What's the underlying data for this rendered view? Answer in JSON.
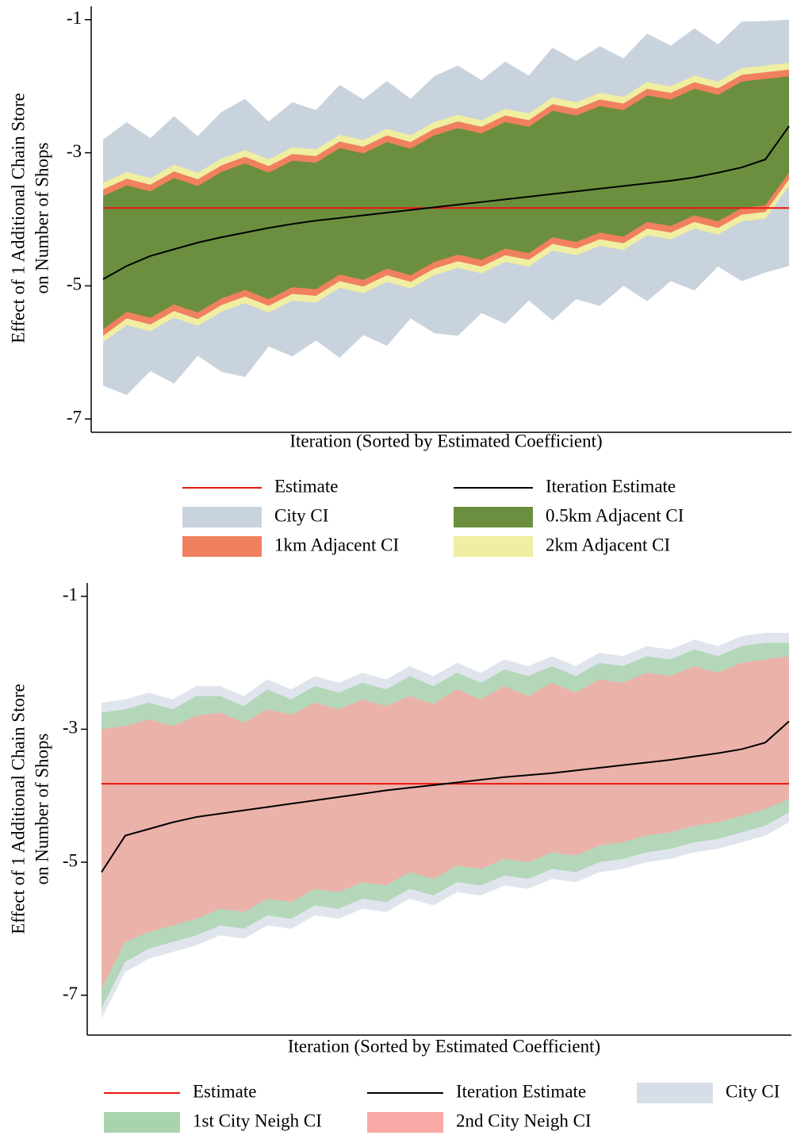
{
  "chart_data": [
    {
      "type": "band",
      "ylabel": [
        "Effect of 1 Additional Chain Store",
        "on Number of Shops"
      ],
      "xlabel": "Iteration (Sorted by Estimated Coefficient)",
      "ylim": [
        -7.2,
        -0.8
      ],
      "yticks": [
        -1,
        -3,
        -5,
        -7
      ],
      "legend_columns": 2,
      "series": [
        {
          "name": "Estimate",
          "kind": "hline",
          "color": "#e8170e",
          "value": -3.83
        },
        {
          "name": "Iteration Estimate",
          "kind": "line",
          "color": "#000000",
          "values": [
            -4.9,
            -4.7,
            -4.55,
            -4.45,
            -4.35,
            -4.27,
            -4.2,
            -4.13,
            -4.07,
            -4.02,
            -3.98,
            -3.94,
            -3.9,
            -3.86,
            -3.82,
            -3.78,
            -3.74,
            -3.7,
            -3.66,
            -3.62,
            -3.58,
            -3.54,
            -3.5,
            -3.46,
            -3.42,
            -3.37,
            -3.3,
            -3.22,
            -3.1,
            -2.6
          ]
        },
        {
          "name": "City CI",
          "kind": "band",
          "color": "#c9d3dd",
          "upper": [
            -2.8,
            -2.54,
            -2.78,
            -2.45,
            -2.75,
            -2.39,
            -2.19,
            -2.53,
            -2.24,
            -2.36,
            -1.98,
            -2.2,
            -1.92,
            -2.19,
            -1.85,
            -1.69,
            -1.91,
            -1.63,
            -1.84,
            -1.42,
            -1.62,
            -1.4,
            -1.58,
            -1.21,
            -1.39,
            -1.13,
            -1.37,
            -1.03,
            -1.02,
            -1.0
          ],
          "lower": [
            -6.5,
            -6.64,
            -6.28,
            -6.47,
            -6.05,
            -6.29,
            -6.37,
            -5.91,
            -6.06,
            -5.82,
            -6.08,
            -5.74,
            -5.9,
            -5.49,
            -5.71,
            -5.75,
            -5.41,
            -5.57,
            -5.22,
            -5.52,
            -5.2,
            -5.3,
            -5.0,
            -5.23,
            -4.93,
            -5.07,
            -4.71,
            -4.93,
            -4.8,
            -4.7
          ]
        },
        {
          "name": "0.5km Adjacent CI",
          "kind": "band",
          "color": "#6b8f3e",
          "upper": [
            -3.65,
            -3.49,
            -3.58,
            -3.38,
            -3.5,
            -3.29,
            -3.16,
            -3.3,
            -3.12,
            -3.15,
            -2.93,
            -3.01,
            -2.84,
            -2.94,
            -2.74,
            -2.63,
            -2.71,
            -2.54,
            -2.61,
            -2.37,
            -2.44,
            -2.3,
            -2.36,
            -2.14,
            -2.2,
            -2.04,
            -2.13,
            -1.93,
            -1.89,
            -1.85
          ],
          "lower": [
            -5.65,
            -5.39,
            -5.48,
            -5.28,
            -5.4,
            -5.19,
            -5.06,
            -5.2,
            -5.02,
            -5.05,
            -4.83,
            -4.91,
            -4.74,
            -4.84,
            -4.64,
            -4.53,
            -4.61,
            -4.44,
            -4.51,
            -4.27,
            -4.34,
            -4.2,
            -4.26,
            -4.04,
            -4.1,
            -3.94,
            -4.03,
            -3.83,
            -3.79,
            -3.3
          ]
        },
        {
          "name": "1km Adjacent CI",
          "kind": "band",
          "color": "#f08060",
          "upper": [
            -3.55,
            -3.39,
            -3.48,
            -3.28,
            -3.4,
            -3.19,
            -3.06,
            -3.2,
            -3.02,
            -3.05,
            -2.83,
            -2.91,
            -2.74,
            -2.84,
            -2.64,
            -2.53,
            -2.61,
            -2.44,
            -2.51,
            -2.27,
            -2.34,
            -2.2,
            -2.26,
            -2.04,
            -2.1,
            -1.94,
            -2.03,
            -1.83,
            -1.79,
            -1.75
          ],
          "lower": [
            -5.75,
            -5.49,
            -5.58,
            -5.38,
            -5.5,
            -5.29,
            -5.16,
            -5.3,
            -5.12,
            -5.15,
            -4.93,
            -5.01,
            -4.84,
            -4.94,
            -4.74,
            -4.63,
            -4.71,
            -4.54,
            -4.61,
            -4.37,
            -4.44,
            -4.3,
            -4.36,
            -4.14,
            -4.2,
            -4.04,
            -4.13,
            -3.93,
            -3.89,
            -3.4
          ]
        },
        {
          "name": "2km Adjacent CI",
          "kind": "band",
          "color": "#f0eea0",
          "upper": [
            -3.45,
            -3.29,
            -3.38,
            -3.18,
            -3.3,
            -3.09,
            -2.96,
            -3.1,
            -2.92,
            -2.95,
            -2.73,
            -2.81,
            -2.64,
            -2.74,
            -2.54,
            -2.43,
            -2.51,
            -2.34,
            -2.41,
            -2.17,
            -2.24,
            -2.1,
            -2.16,
            -1.94,
            -2.0,
            -1.84,
            -1.93,
            -1.73,
            -1.69,
            -1.65
          ],
          "lower": [
            -5.85,
            -5.59,
            -5.68,
            -5.48,
            -5.6,
            -5.39,
            -5.26,
            -5.4,
            -5.22,
            -5.25,
            -5.03,
            -5.11,
            -4.94,
            -5.04,
            -4.84,
            -4.73,
            -4.81,
            -4.64,
            -4.71,
            -4.47,
            -4.54,
            -4.4,
            -4.46,
            -4.24,
            -4.3,
            -4.14,
            -4.23,
            -4.03,
            -3.99,
            -3.5
          ]
        }
      ]
    },
    {
      "type": "band",
      "ylabel": [
        "Effect of 1 Additional Chain Store",
        "on Number of Shops"
      ],
      "xlabel": "Iteration (Sorted by Estimated Coefficient)",
      "ylim": [
        -7.6,
        -0.8
      ],
      "yticks": [
        -1,
        -3,
        -5,
        -7
      ],
      "legend_columns": 3,
      "series": [
        {
          "name": "Estimate",
          "kind": "hline",
          "color": "#e8170e",
          "value": -3.82
        },
        {
          "name": "Iteration Estimate",
          "kind": "line",
          "color": "#000000",
          "values": [
            -5.15,
            -4.6,
            -4.5,
            -4.4,
            -4.32,
            -4.27,
            -4.22,
            -4.17,
            -4.12,
            -4.07,
            -4.02,
            -3.97,
            -3.92,
            -3.88,
            -3.84,
            -3.8,
            -3.76,
            -3.72,
            -3.69,
            -3.66,
            -3.62,
            -3.58,
            -3.54,
            -3.5,
            -3.46,
            -3.41,
            -3.36,
            -3.3,
            -3.2,
            -2.88
          ]
        },
        {
          "name": "City CI",
          "kind": "band",
          "color": "#d8dee8",
          "upper": [
            -2.6,
            -2.55,
            -2.45,
            -2.55,
            -2.35,
            -2.35,
            -2.5,
            -2.25,
            -2.4,
            -2.2,
            -2.3,
            -2.15,
            -2.25,
            -2.05,
            -2.2,
            -2.0,
            -2.15,
            -1.95,
            -2.05,
            -1.9,
            -2.05,
            -1.85,
            -1.9,
            -1.75,
            -1.8,
            -1.65,
            -1.75,
            -1.6,
            -1.55,
            -1.55
          ],
          "lower": [
            -7.35,
            -6.65,
            -6.45,
            -6.35,
            -6.25,
            -6.1,
            -6.15,
            -5.95,
            -6.0,
            -5.8,
            -5.85,
            -5.7,
            -5.75,
            -5.55,
            -5.65,
            -5.45,
            -5.5,
            -5.35,
            -5.4,
            -5.25,
            -5.3,
            -5.15,
            -5.1,
            -5.0,
            -4.95,
            -4.85,
            -4.8,
            -4.7,
            -4.6,
            -4.4
          ]
        },
        {
          "name": "1st City Neigh CI",
          "kind": "band",
          "color": "#a9d3ad",
          "upper": [
            -2.75,
            -2.7,
            -2.6,
            -2.7,
            -2.5,
            -2.5,
            -2.65,
            -2.4,
            -2.55,
            -2.35,
            -2.45,
            -2.3,
            -2.4,
            -2.2,
            -2.35,
            -2.15,
            -2.3,
            -2.1,
            -2.2,
            -2.05,
            -2.2,
            -2.0,
            -2.05,
            -1.9,
            -1.95,
            -1.8,
            -1.9,
            -1.75,
            -1.7,
            -1.7
          ],
          "lower": [
            -7.2,
            -6.5,
            -6.3,
            -6.2,
            -6.1,
            -5.95,
            -6.0,
            -5.8,
            -5.85,
            -5.65,
            -5.7,
            -5.55,
            -5.6,
            -5.4,
            -5.5,
            -5.3,
            -5.35,
            -5.2,
            -5.25,
            -5.1,
            -5.15,
            -5.0,
            -4.95,
            -4.85,
            -4.8,
            -4.7,
            -4.65,
            -4.55,
            -4.45,
            -4.25
          ]
        },
        {
          "name": "2nd City Neigh CI",
          "kind": "band",
          "color": "#f9a9a6",
          "upper": [
            -3.0,
            -2.95,
            -2.85,
            -2.95,
            -2.8,
            -2.75,
            -2.9,
            -2.7,
            -2.78,
            -2.6,
            -2.7,
            -2.55,
            -2.65,
            -2.5,
            -2.62,
            -2.4,
            -2.55,
            -2.35,
            -2.5,
            -2.3,
            -2.45,
            -2.25,
            -2.3,
            -2.15,
            -2.2,
            -2.05,
            -2.15,
            -2.0,
            -1.95,
            -1.9
          ],
          "lower": [
            -6.9,
            -6.2,
            -6.05,
            -5.95,
            -5.85,
            -5.7,
            -5.75,
            -5.55,
            -5.6,
            -5.4,
            -5.45,
            -5.3,
            -5.35,
            -5.15,
            -5.25,
            -5.05,
            -5.1,
            -4.95,
            -5.0,
            -4.85,
            -4.9,
            -4.75,
            -4.7,
            -4.6,
            -4.55,
            -4.45,
            -4.4,
            -4.3,
            -4.2,
            -4.05
          ]
        }
      ]
    }
  ]
}
